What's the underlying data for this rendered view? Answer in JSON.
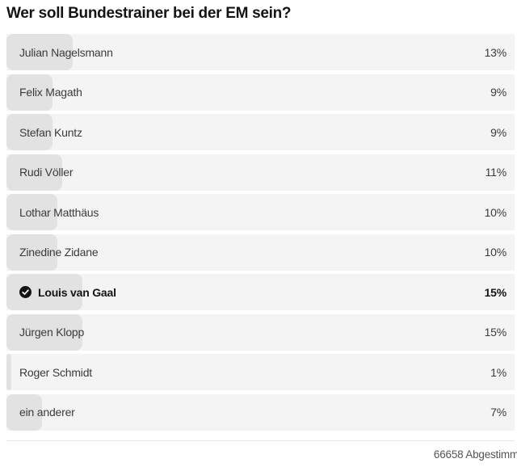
{
  "poll": {
    "title": "Wer soll Bundestrainer bei der EM sein?",
    "options": [
      {
        "label": "Julian Nagelsmann",
        "percent_text": "13%",
        "value": 13,
        "selected": false
      },
      {
        "label": "Felix Magath",
        "percent_text": "9%",
        "value": 9,
        "selected": false
      },
      {
        "label": "Stefan Kuntz",
        "percent_text": "9%",
        "value": 9,
        "selected": false
      },
      {
        "label": "Rudi Völler",
        "percent_text": "11%",
        "value": 11,
        "selected": false
      },
      {
        "label": "Lothar Matthäus",
        "percent_text": "10%",
        "value": 10,
        "selected": false
      },
      {
        "label": "Zinedine Zidane",
        "percent_text": "10%",
        "value": 10,
        "selected": false
      },
      {
        "label": "Louis van Gaal",
        "percent_text": "15%",
        "value": 15,
        "selected": true
      },
      {
        "label": "Jürgen Klopp",
        "percent_text": "15%",
        "value": 15,
        "selected": false
      },
      {
        "label": "Roger Schmidt",
        "percent_text": "1%",
        "value": 1,
        "selected": false
      },
      {
        "label": "ein anderer",
        "percent_text": "7%",
        "value": 7,
        "selected": false
      }
    ],
    "footer": {
      "votes_text": "66658 Abgestimm"
    },
    "colors": {
      "row_bg": "#f4f4f4",
      "bar_fill": "#e2e2e2",
      "title_text": "#141414",
      "option_text": "#3b3b3b",
      "selected_icon_bg": "#141414",
      "divider": "#e5e5e5",
      "footer_text": "#565656"
    }
  },
  "chart_data": {
    "type": "bar",
    "orientation": "horizontal",
    "title": "Wer soll Bundestrainer bei der EM sein?",
    "categories": [
      "Julian Nagelsmann",
      "Felix Magath",
      "Stefan Kuntz",
      "Rudi Völler",
      "Lothar Matthäus",
      "Zinedine Zidane",
      "Louis van Gaal",
      "Jürgen Klopp",
      "Roger Schmidt",
      "ein anderer"
    ],
    "values": [
      13,
      9,
      9,
      11,
      10,
      10,
      15,
      15,
      1,
      7
    ],
    "unit": "%",
    "xlim": [
      0,
      100
    ],
    "data_labels": [
      "13%",
      "9%",
      "9%",
      "11%",
      "10%",
      "10%",
      "15%",
      "15%",
      "1%",
      "7%"
    ],
    "selected_category": "Louis van Gaal",
    "annotation": "66658 Abgestimm",
    "grid": false,
    "legend": false
  }
}
